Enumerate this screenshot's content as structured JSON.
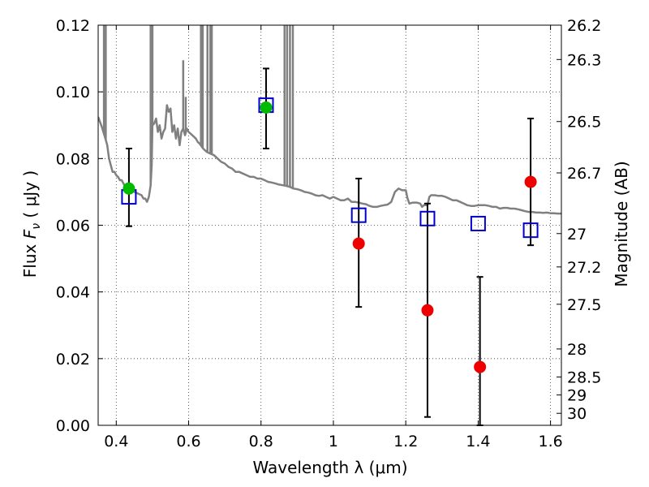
{
  "chart_data": {
    "type": "scatter",
    "title": "",
    "xlabel": "Wavelength  λ (μm)",
    "ylabel_prefix": "Flux  ",
    "ylabel_symbol": "F",
    "ylabel_symbol_sub": "ν",
    "ylabel_suffix": "  ( μJy )",
    "y2label": "Magnitude (AB)",
    "xlim": [
      0.35,
      1.63
    ],
    "ylim": [
      0.0,
      0.12
    ],
    "grid": true,
    "legend": "none",
    "x_ticks": [
      {
        "value": 0.4,
        "label": "0.4"
      },
      {
        "value": 0.6,
        "label": "0.6"
      },
      {
        "value": 0.8,
        "label": "0.8"
      },
      {
        "value": 1.0,
        "label": "1"
      },
      {
        "value": 1.2,
        "label": "1.2"
      },
      {
        "value": 1.4,
        "label": "1.4"
      },
      {
        "value": 1.6,
        "label": "1.6"
      }
    ],
    "y_ticks": [
      {
        "value": 0.0,
        "label": "0.00"
      },
      {
        "value": 0.02,
        "label": "0.02"
      },
      {
        "value": 0.04,
        "label": "0.04"
      },
      {
        "value": 0.06,
        "label": "0.06"
      },
      {
        "value": 0.08,
        "label": "0.08"
      },
      {
        "value": 0.1,
        "label": "0.10"
      },
      {
        "value": 0.12,
        "label": "0.12"
      }
    ],
    "y2_ticks": [
      {
        "flux": 0.12,
        "label": "26.2"
      },
      {
        "flux": 0.1097,
        "label": "26.3"
      },
      {
        "flux": 0.0911,
        "label": "26.5"
      },
      {
        "flux": 0.0757,
        "label": "26.7"
      },
      {
        "flux": 0.0575,
        "label": "27"
      },
      {
        "flux": 0.0475,
        "label": "27.2"
      },
      {
        "flux": 0.0363,
        "label": "27.5"
      },
      {
        "flux": 0.0229,
        "label": "28"
      },
      {
        "flux": 0.0145,
        "label": "28.5"
      },
      {
        "flux": 0.0091,
        "label": "29"
      },
      {
        "flux": 0.0036,
        "label": "30"
      }
    ],
    "colors": {
      "spectrum": "#808080",
      "model": "#0000cc",
      "detected": "#00bb00",
      "measured": "#ee0000",
      "errorbar": "#000000"
    },
    "model_points": [
      {
        "x": 0.435,
        "y": 0.0685
      },
      {
        "x": 0.814,
        "y": 0.096
      },
      {
        "x": 1.07,
        "y": 0.063
      },
      {
        "x": 1.26,
        "y": 0.062
      },
      {
        "x": 1.4,
        "y": 0.0605
      },
      {
        "x": 1.545,
        "y": 0.0585
      }
    ],
    "detected_points": [
      {
        "x": 0.435,
        "y": 0.071,
        "err_low": 0.0597,
        "err_high": 0.083
      },
      {
        "x": 0.814,
        "y": 0.0953,
        "err_low": 0.083,
        "err_high": 0.107
      }
    ],
    "measured_points": [
      {
        "x": 1.07,
        "y": 0.0545,
        "err_low": 0.0355,
        "err_high": 0.074
      },
      {
        "x": 1.26,
        "y": 0.0345,
        "err_low": 0.0025,
        "err_high": 0.0665
      },
      {
        "x": 1.405,
        "y": 0.0175,
        "err_low": 0.0,
        "err_high": 0.0445
      },
      {
        "x": 1.545,
        "y": 0.073,
        "err_low": 0.054,
        "err_high": 0.092
      }
    ],
    "spectrum": [
      [
        0.35,
        0.0925
      ],
      [
        0.36,
        0.0895
      ],
      [
        0.37,
        0.086
      ],
      [
        0.375,
        0.084
      ],
      [
        0.38,
        0.08
      ],
      [
        0.385,
        0.078
      ],
      [
        0.39,
        0.076
      ],
      [
        0.395,
        0.076
      ],
      [
        0.4,
        0.075
      ],
      [
        0.405,
        0.0745
      ],
      [
        0.41,
        0.0735
      ],
      [
        0.415,
        0.0735
      ],
      [
        0.42,
        0.0725
      ],
      [
        0.425,
        0.0715
      ],
      [
        0.43,
        0.071
      ],
      [
        0.44,
        0.0705
      ],
      [
        0.45,
        0.07
      ],
      [
        0.46,
        0.0695
      ],
      [
        0.47,
        0.069
      ],
      [
        0.475,
        0.068
      ],
      [
        0.48,
        0.068
      ],
      [
        0.485,
        0.067
      ],
      [
        0.49,
        0.0685
      ],
      [
        0.495,
        0.072
      ],
      [
        0.498,
        0.078
      ],
      [
        0.5,
        0.09
      ],
      [
        0.505,
        0.0905
      ],
      [
        0.51,
        0.092
      ],
      [
        0.515,
        0.088
      ],
      [
        0.52,
        0.09
      ],
      [
        0.525,
        0.086
      ],
      [
        0.53,
        0.088
      ],
      [
        0.535,
        0.089
      ],
      [
        0.54,
        0.096
      ],
      [
        0.545,
        0.094
      ],
      [
        0.55,
        0.095
      ],
      [
        0.555,
        0.088
      ],
      [
        0.56,
        0.09
      ],
      [
        0.565,
        0.086
      ],
      [
        0.57,
        0.089
      ],
      [
        0.575,
        0.084
      ],
      [
        0.58,
        0.088
      ],
      [
        0.585,
        0.089
      ],
      [
        0.59,
        0.087
      ],
      [
        0.595,
        0.089
      ],
      [
        0.6,
        0.088
      ],
      [
        0.61,
        0.087
      ],
      [
        0.62,
        0.086
      ],
      [
        0.625,
        0.085
      ],
      [
        0.63,
        0.0845
      ],
      [
        0.64,
        0.083
      ],
      [
        0.65,
        0.082
      ],
      [
        0.66,
        0.0815
      ],
      [
        0.67,
        0.081
      ],
      [
        0.68,
        0.08
      ],
      [
        0.69,
        0.079
      ],
      [
        0.7,
        0.0785
      ],
      [
        0.71,
        0.0775
      ],
      [
        0.72,
        0.077
      ],
      [
        0.73,
        0.076
      ],
      [
        0.74,
        0.076
      ],
      [
        0.75,
        0.0755
      ],
      [
        0.76,
        0.075
      ],
      [
        0.77,
        0.0745
      ],
      [
        0.78,
        0.0745
      ],
      [
        0.79,
        0.074
      ],
      [
        0.8,
        0.074
      ],
      [
        0.81,
        0.0735
      ],
      [
        0.82,
        0.073
      ],
      [
        0.83,
        0.0728
      ],
      [
        0.84,
        0.0725
      ],
      [
        0.85,
        0.0722
      ],
      [
        0.86,
        0.072
      ],
      [
        0.87,
        0.0718
      ],
      [
        0.88,
        0.0715
      ],
      [
        0.89,
        0.071
      ],
      [
        0.9,
        0.0708
      ],
      [
        0.91,
        0.0705
      ],
      [
        0.92,
        0.07
      ],
      [
        0.93,
        0.0698
      ],
      [
        0.94,
        0.0695
      ],
      [
        0.95,
        0.069
      ],
      [
        0.96,
        0.0688
      ],
      [
        0.97,
        0.069
      ],
      [
        0.98,
        0.0685
      ],
      [
        0.99,
        0.068
      ],
      [
        1.0,
        0.0685
      ],
      [
        1.01,
        0.068
      ],
      [
        1.02,
        0.0675
      ],
      [
        1.03,
        0.0675
      ],
      [
        1.04,
        0.068
      ],
      [
        1.05,
        0.067
      ],
      [
        1.06,
        0.067
      ],
      [
        1.07,
        0.0668
      ],
      [
        1.08,
        0.0665
      ],
      [
        1.09,
        0.0663
      ],
      [
        1.1,
        0.0658
      ],
      [
        1.11,
        0.0655
      ],
      [
        1.12,
        0.0655
      ],
      [
        1.13,
        0.0658
      ],
      [
        1.14,
        0.066
      ],
      [
        1.15,
        0.0662
      ],
      [
        1.16,
        0.067
      ],
      [
        1.17,
        0.07
      ],
      [
        1.18,
        0.071
      ],
      [
        1.19,
        0.0705
      ],
      [
        1.2,
        0.0705
      ],
      [
        1.205,
        0.068
      ],
      [
        1.21,
        0.0665
      ],
      [
        1.22,
        0.0668
      ],
      [
        1.23,
        0.0668
      ],
      [
        1.24,
        0.0665
      ],
      [
        1.245,
        0.0655
      ],
      [
        1.25,
        0.066
      ],
      [
        1.26,
        0.066
      ],
      [
        1.265,
        0.0685
      ],
      [
        1.27,
        0.069
      ],
      [
        1.28,
        0.069
      ],
      [
        1.29,
        0.0688
      ],
      [
        1.3,
        0.0688
      ],
      [
        1.31,
        0.0685
      ],
      [
        1.32,
        0.068
      ],
      [
        1.33,
        0.0675
      ],
      [
        1.34,
        0.0675
      ],
      [
        1.35,
        0.067
      ],
      [
        1.36,
        0.0665
      ],
      [
        1.37,
        0.066
      ],
      [
        1.38,
        0.0658
      ],
      [
        1.39,
        0.0658
      ],
      [
        1.4,
        0.066
      ],
      [
        1.41,
        0.066
      ],
      [
        1.42,
        0.066
      ],
      [
        1.43,
        0.0658
      ],
      [
        1.44,
        0.0655
      ],
      [
        1.45,
        0.0655
      ],
      [
        1.46,
        0.065
      ],
      [
        1.47,
        0.0652
      ],
      [
        1.48,
        0.0652
      ],
      [
        1.49,
        0.065
      ],
      [
        1.5,
        0.065
      ],
      [
        1.51,
        0.0648
      ],
      [
        1.52,
        0.0645
      ],
      [
        1.53,
        0.0642
      ],
      [
        1.54,
        0.064
      ],
      [
        1.55,
        0.064
      ],
      [
        1.56,
        0.0638
      ],
      [
        1.57,
        0.0638
      ],
      [
        1.58,
        0.0637
      ],
      [
        1.59,
        0.0638
      ],
      [
        1.6,
        0.0636
      ],
      [
        1.61,
        0.0636
      ],
      [
        1.62,
        0.0635
      ],
      [
        1.63,
        0.0635
      ]
    ],
    "spectrum_spikes": [
      {
        "x": 0.366,
        "to": 0.12
      },
      {
        "x": 0.371,
        "to": 0.12
      },
      {
        "x": 0.495,
        "to": 0.12
      },
      {
        "x": 0.5,
        "to": 0.12
      },
      {
        "x": 0.585,
        "to": 0.109
      },
      {
        "x": 0.592,
        "to": 0.098
      },
      {
        "x": 0.634,
        "to": 0.12
      },
      {
        "x": 0.639,
        "to": 0.12
      },
      {
        "x": 0.652,
        "to": 0.12
      },
      {
        "x": 0.66,
        "to": 0.12
      },
      {
        "x": 0.664,
        "to": 0.12
      },
      {
        "x": 0.865,
        "to": 0.12
      },
      {
        "x": 0.872,
        "to": 0.12
      },
      {
        "x": 0.88,
        "to": 0.12
      },
      {
        "x": 0.888,
        "to": 0.12
      }
    ]
  }
}
